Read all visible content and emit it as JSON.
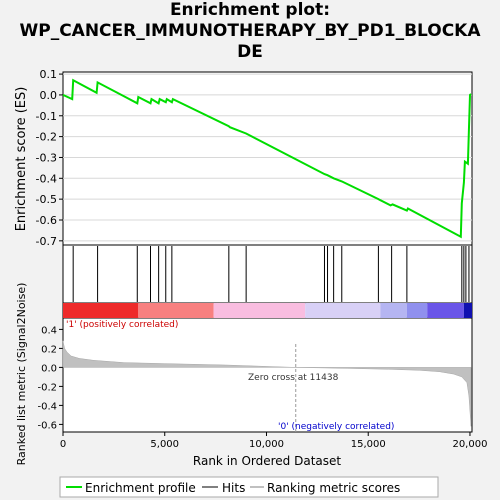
{
  "title_line1": "Enrichment plot:",
  "title_line2": "WP_CANCER_IMMUNOTHERAPY_BY_PD1_BLOCKA",
  "title_line3": "DE",
  "chart_data": {
    "type": "line",
    "es_panel": {
      "ylabel": "Enrichment score (ES)",
      "ylim": [
        -0.72,
        0.11
      ],
      "yticks": [
        0.1,
        0.0,
        -0.1,
        -0.2,
        -0.3,
        -0.4,
        -0.5,
        -0.6,
        -0.7
      ],
      "ytick_labels": [
        "0.1",
        "0.0",
        "-0.1",
        "-0.2",
        "-0.3",
        "-0.4",
        "-0.5",
        "-0.6",
        "-0.7"
      ],
      "color": "#00dd00",
      "points": [
        [
          0,
          0.0
        ],
        [
          450,
          -0.02
        ],
        [
          500,
          0.07
        ],
        [
          1650,
          0.01
        ],
        [
          1700,
          0.06
        ],
        [
          3650,
          -0.04
        ],
        [
          3700,
          -0.01
        ],
        [
          4300,
          -0.04
        ],
        [
          4350,
          -0.02
        ],
        [
          4700,
          -0.04
        ],
        [
          4750,
          -0.02
        ],
        [
          5050,
          -0.035
        ],
        [
          5100,
          -0.02
        ],
        [
          5350,
          -0.035
        ],
        [
          5400,
          -0.02
        ],
        [
          8150,
          -0.15
        ],
        [
          8200,
          -0.155
        ],
        [
          9000,
          -0.185
        ],
        [
          12850,
          -0.38
        ],
        [
          13000,
          -0.385
        ],
        [
          13300,
          -0.4
        ],
        [
          13700,
          -0.415
        ],
        [
          15500,
          -0.5
        ],
        [
          15600,
          -0.505
        ],
        [
          16100,
          -0.53
        ],
        [
          16200,
          -0.525
        ],
        [
          16900,
          -0.555
        ],
        [
          16950,
          -0.545
        ],
        [
          19550,
          -0.68
        ],
        [
          19600,
          -0.52
        ],
        [
          19700,
          -0.42
        ],
        [
          19750,
          -0.32
        ],
        [
          19900,
          -0.33
        ],
        [
          19950,
          -0.17
        ],
        [
          20000,
          0.0
        ],
        [
          20050,
          0.005
        ]
      ]
    },
    "hits": [
      500,
      1700,
      3650,
      4300,
      4700,
      5050,
      5350,
      8150,
      9000,
      12850,
      13000,
      13300,
      13700,
      15500,
      16150,
      16900,
      19600,
      19700,
      19800,
      19950
    ],
    "gradient_bar": {
      "label_pos": "'1' (positively correlated)",
      "label_neg": "'0' (negatively correlated)",
      "segments": [
        {
          "from": 0,
          "to": 3700,
          "color": "#ee2a2a"
        },
        {
          "from": 3700,
          "to": 7400,
          "color": "#f88080"
        },
        {
          "from": 7400,
          "to": 11900,
          "color": "#f9bde0"
        },
        {
          "from": 11900,
          "to": 15600,
          "color": "#d8d0f6"
        },
        {
          "from": 15600,
          "to": 16900,
          "color": "#b5b5f2"
        },
        {
          "from": 16900,
          "to": 17900,
          "color": "#9090ee"
        },
        {
          "from": 17900,
          "to": 19700,
          "color": "#6a55e8"
        },
        {
          "from": 19700,
          "to": 20100,
          "color": "#1010b0"
        }
      ]
    },
    "metric_panel": {
      "ylabel": "Ranked list metric (Signal2Noise)",
      "ylim": [
        -0.68,
        0.52
      ],
      "yticks": [
        0.4,
        0.2,
        0.0,
        -0.2,
        -0.4,
        -0.6
      ],
      "ytick_labels": [
        "0.4",
        "0.2",
        "0.0",
        "-0.2",
        "-0.4",
        "-0.6"
      ],
      "zero_cross_label": "Zero cross at 11438",
      "zero_cross": 11438,
      "color": "#c0c0c0",
      "points": [
        [
          0,
          0.28
        ],
        [
          80,
          0.2
        ],
        [
          200,
          0.16
        ],
        [
          400,
          0.12
        ],
        [
          800,
          0.095
        ],
        [
          1500,
          0.075
        ],
        [
          3000,
          0.05
        ],
        [
          5000,
          0.04
        ],
        [
          8000,
          0.025
        ],
        [
          11438,
          0.0
        ],
        [
          14000,
          -0.01
        ],
        [
          16000,
          -0.02
        ],
        [
          17500,
          -0.03
        ],
        [
          18500,
          -0.045
        ],
        [
          19200,
          -0.07
        ],
        [
          19600,
          -0.1
        ],
        [
          19850,
          -0.16
        ],
        [
          19950,
          -0.3
        ],
        [
          20050,
          -0.62
        ]
      ]
    },
    "xaxis": {
      "label": "Rank in Ordered Dataset",
      "xlim": [
        0,
        20100
      ],
      "ticks": [
        0,
        5000,
        10000,
        15000,
        20000
      ],
      "tick_labels": [
        "0",
        "5,000",
        "10,000",
        "15,000",
        "20,000"
      ]
    },
    "legend": {
      "placement": "bottom",
      "entries": [
        "Enrichment profile",
        "Hits",
        "Ranking metric scores"
      ]
    }
  }
}
